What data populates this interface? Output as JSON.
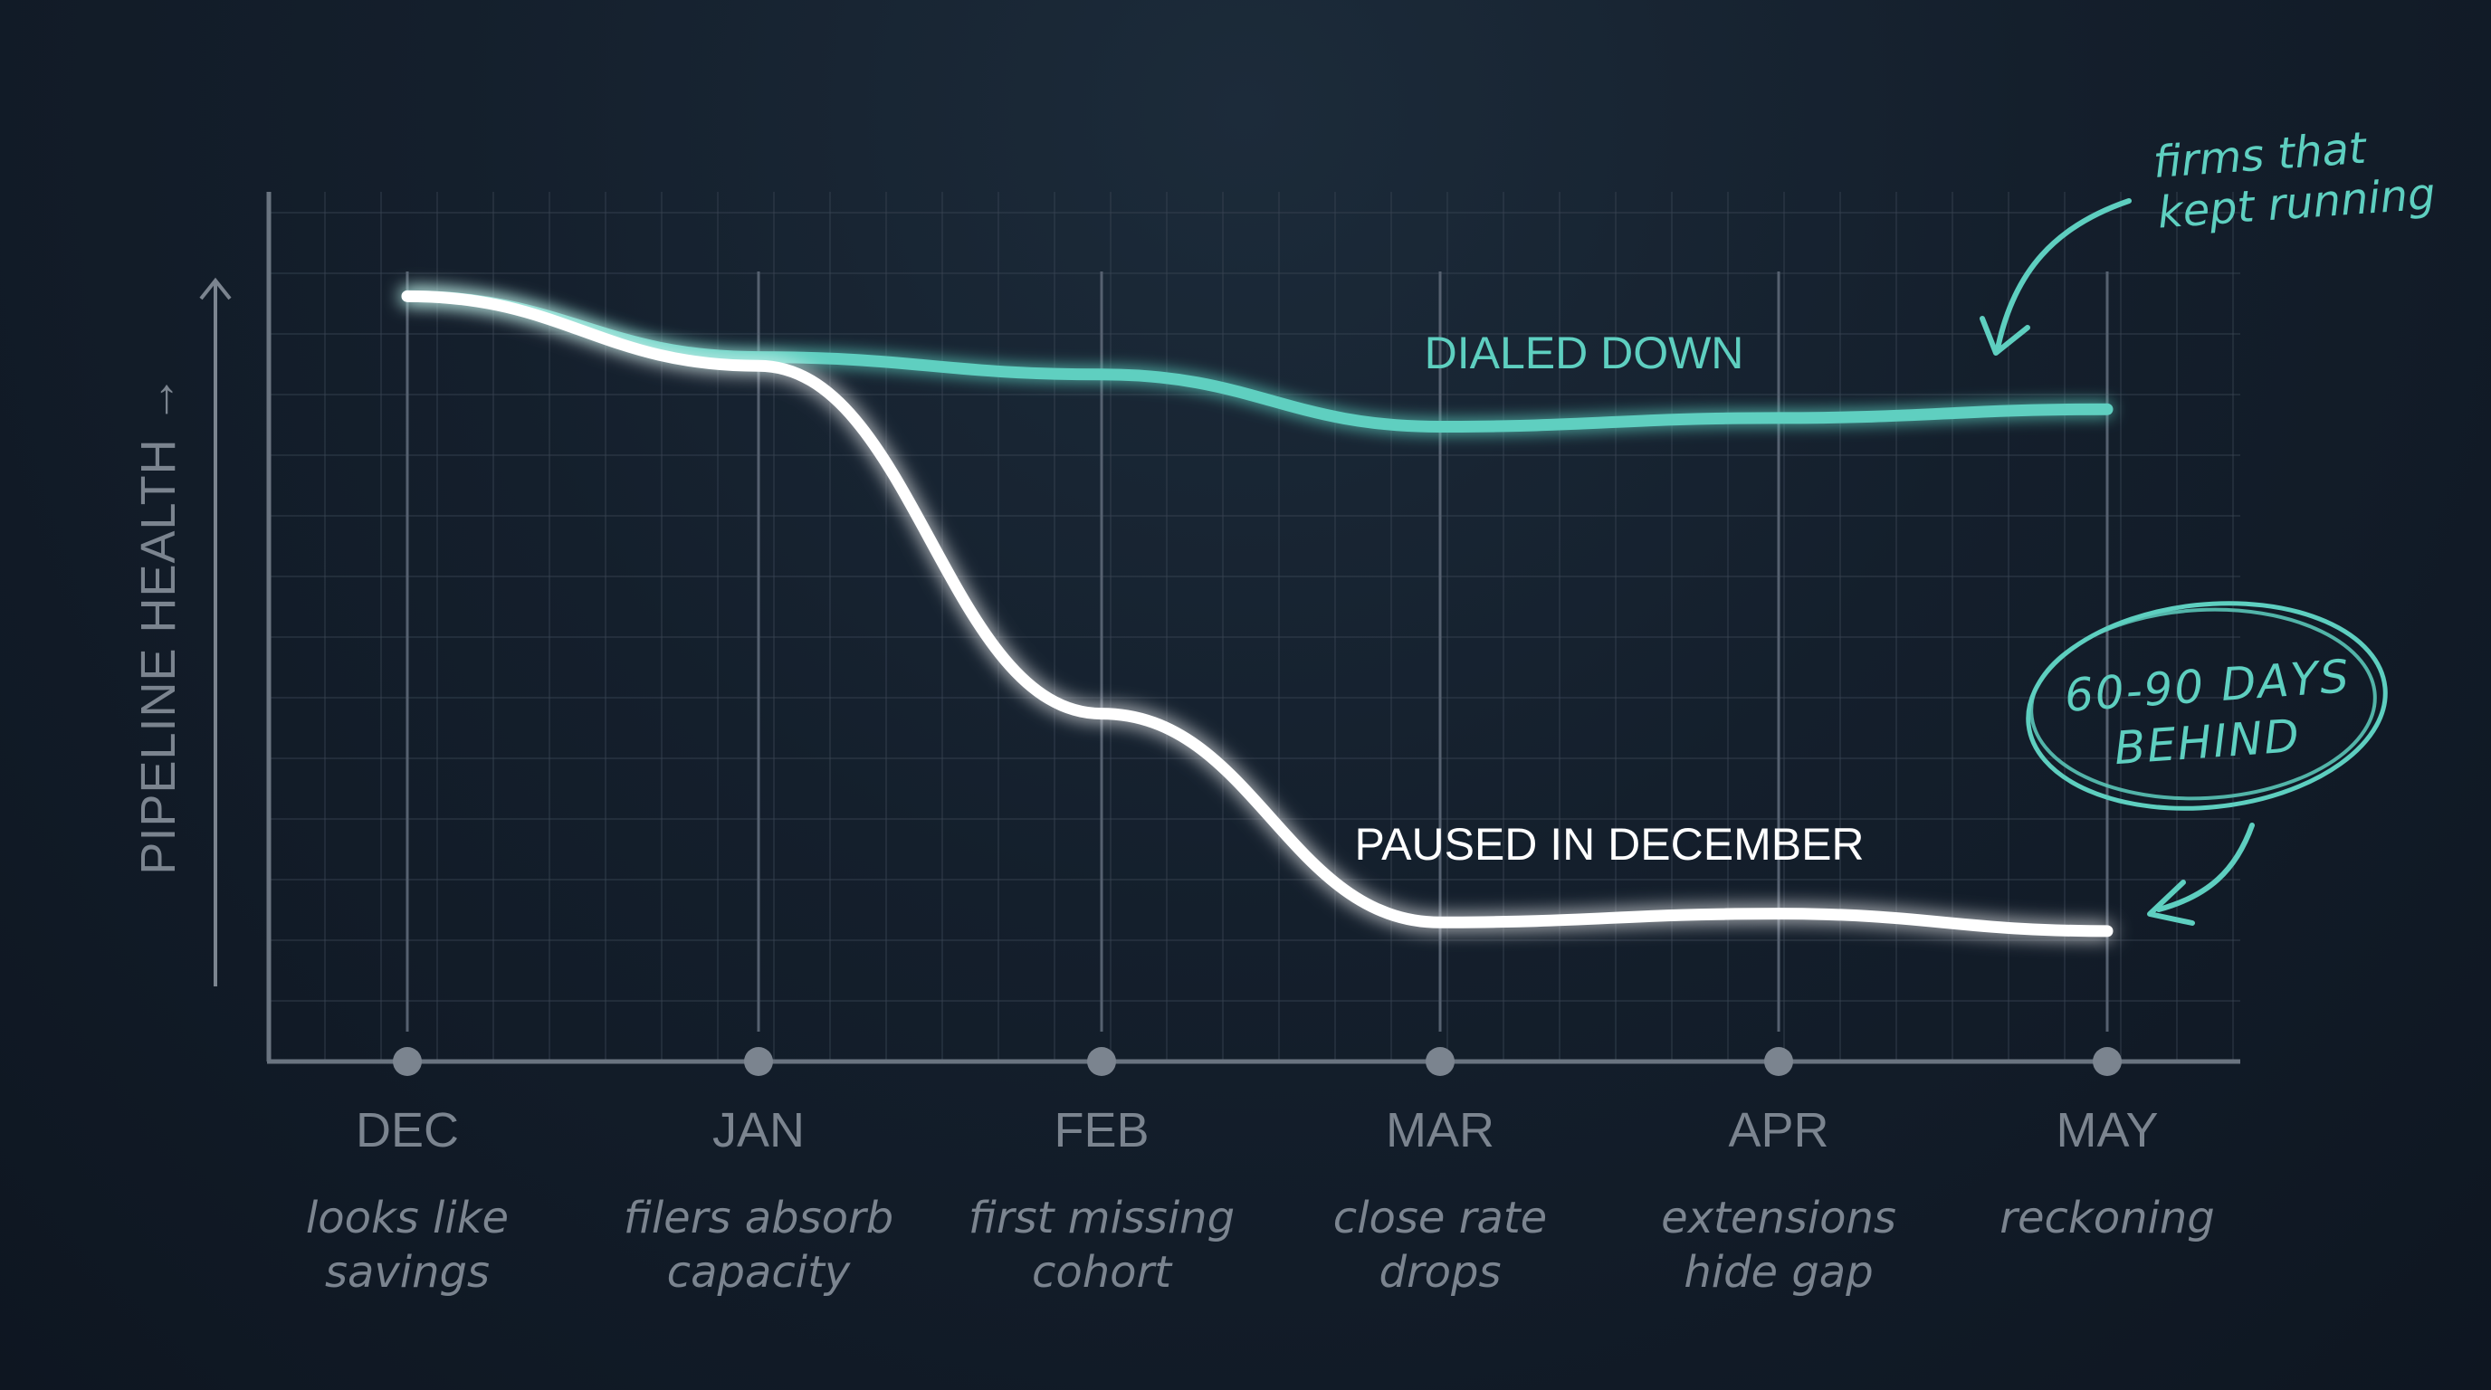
{
  "chart_data": {
    "type": "line",
    "ylabel": "PIPELINE HEALTH →",
    "categories": [
      "DEC",
      "JAN",
      "FEB",
      "MAR",
      "APR",
      "MAY"
    ],
    "category_notes": [
      [
        "looks like",
        "savings"
      ],
      [
        "filers absorb",
        "capacity"
      ],
      [
        "first missing",
        "cohort"
      ],
      [
        "close rate",
        "drops"
      ],
      [
        "extensions",
        "hide gap"
      ],
      [
        "reckoning",
        ""
      ]
    ],
    "series": [
      {
        "name": "DIALED DOWN",
        "color": "#5ecfc0",
        "values": [
          88,
          81,
          79,
          73,
          74,
          75
        ]
      },
      {
        "name": "PAUSED IN DECEMBER",
        "color": "#ffffff",
        "values": [
          88,
          80,
          40,
          16,
          17,
          15
        ]
      }
    ],
    "ylim": [
      0,
      100
    ],
    "grid": true,
    "legend": "inline",
    "annotations": [
      {
        "text": [
          "firms that",
          "kept running"
        ],
        "color": "#5ecfc0",
        "points_to": "DIALED DOWN"
      },
      {
        "text": [
          "60-90 DAYS",
          "BEHIND"
        ],
        "color": "#5ecfc0",
        "points_to": "PAUSED IN DECEMBER",
        "style": "circled"
      }
    ]
  }
}
